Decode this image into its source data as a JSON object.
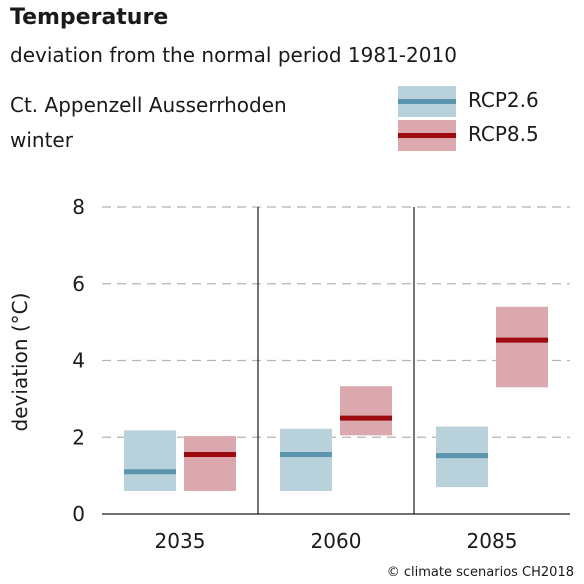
{
  "header": {
    "title": "Temperature",
    "subtitle": "deviation from the normal period 1981-2010",
    "region": "Ct. Appenzell Ausserrhoden",
    "season": "winter"
  },
  "credit": "© climate scenarios CH2018",
  "chart_data": {
    "type": "bar",
    "ylabel": "deviation (°C)",
    "ylim": [
      0,
      8
    ],
    "yticks": [
      0,
      2,
      4,
      6,
      8
    ],
    "grid": "dashed horizontal",
    "legend_position": "top-right",
    "categories": [
      "2035",
      "2060",
      "2085"
    ],
    "series": [
      {
        "name": "RCP2.6",
        "fill_color": "#b8d1da",
        "line_color": "#5b95ad",
        "low": [
          0.6,
          0.6,
          0.7
        ],
        "median": [
          1.1,
          1.55,
          1.52
        ],
        "high": [
          2.18,
          2.22,
          2.28
        ]
      },
      {
        "name": "RCP8.5",
        "fill_color": "#dba9ad",
        "line_color": "#9e0b0f",
        "low": [
          0.6,
          2.05,
          3.3
        ],
        "median": [
          1.55,
          2.5,
          4.53
        ],
        "high": [
          2.03,
          3.33,
          5.4
        ]
      }
    ]
  }
}
